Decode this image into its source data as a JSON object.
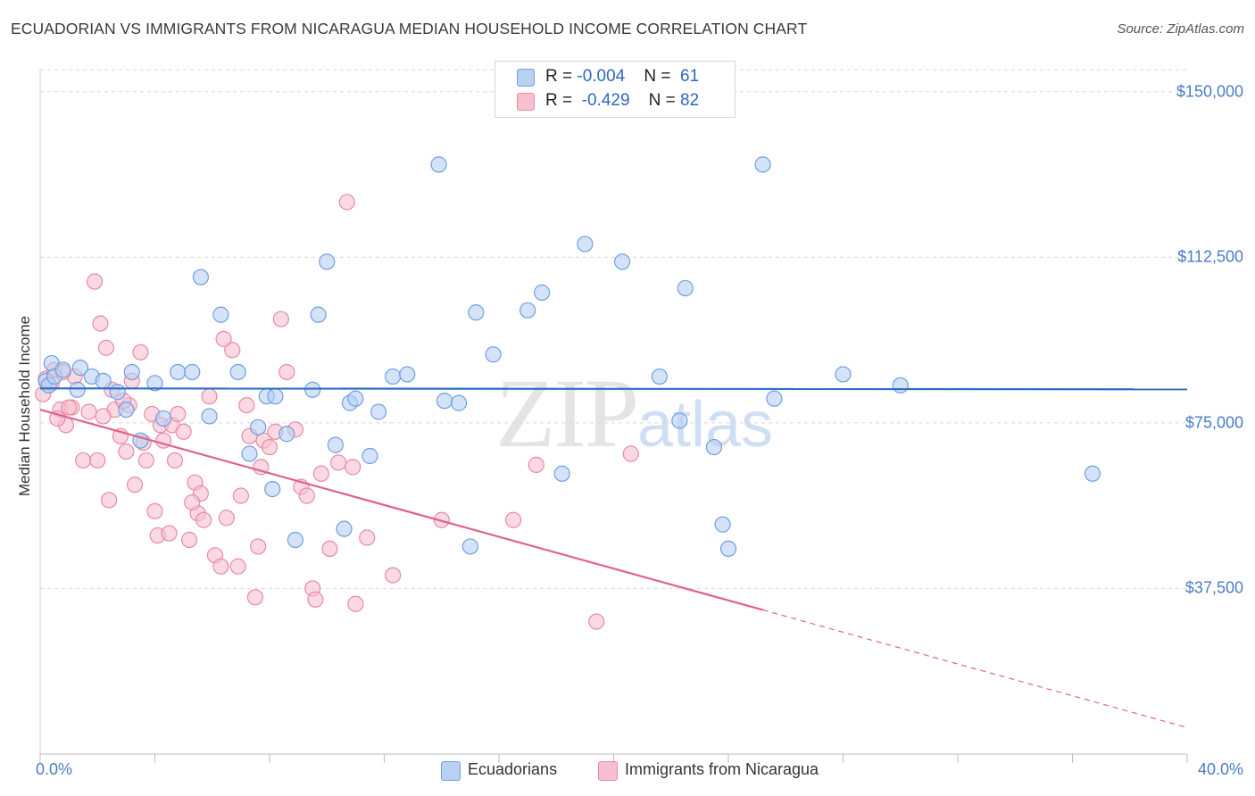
{
  "title": "ECUADORIAN VS IMMIGRANTS FROM NICARAGUA MEDIAN HOUSEHOLD INCOME CORRELATION CHART",
  "source": "Source: ZipAtlas.com",
  "watermark": {
    "zip": "ZIP",
    "atlas": "atlas"
  },
  "colors": {
    "blue_fill": "#b8d1f3",
    "blue_stroke": "#6f9fe0",
    "blue_line": "#2b6cc8",
    "pink_fill": "#f6c0cf",
    "pink_stroke": "#e889a6",
    "pink_line": "#e0628d",
    "tick_text": "#4a7cc4",
    "grid": "#d8d8d8"
  },
  "legend": {
    "rows": [
      {
        "r_label": "R = ",
        "r_value": "-0.004",
        "n_label": "N = ",
        "n_value": "61"
      },
      {
        "r_label": "R = ",
        "r_value": "-0.429",
        "n_label": "N = ",
        "n_value": "82"
      }
    ]
  },
  "bottom_legend": [
    "Ecuadorians",
    "Immigrants from Nicaragua"
  ],
  "chart_data": {
    "type": "scatter",
    "xlabel": "",
    "ylabel": "Median Household Income",
    "xlim": [
      0,
      40
    ],
    "ylim": [
      0,
      155000
    ],
    "x_tick_labels": [
      "0.0%",
      "40.0%"
    ],
    "y_ticks": [
      37500,
      75000,
      112500,
      150000
    ],
    "y_tick_labels": [
      "$37,500",
      "$75,000",
      "$112,500",
      "$150,000"
    ],
    "grid": "horizontal dashed",
    "legend_position": "top-center",
    "series": [
      {
        "name": "Ecuadorians",
        "trend": {
          "x0": 0,
          "y0": 82800,
          "x1": 40,
          "y1": 82600,
          "solid_until": 40
        },
        "points": [
          [
            0.2,
            84500
          ],
          [
            0.3,
            83500
          ],
          [
            0.4,
            88500
          ],
          [
            0.5,
            85500
          ],
          [
            0.8,
            87000
          ],
          [
            1.4,
            87500
          ],
          [
            1.3,
            82500
          ],
          [
            1.8,
            85500
          ],
          [
            2.2,
            84500
          ],
          [
            2.7,
            82000
          ],
          [
            3.0,
            78000
          ],
          [
            3.2,
            86500
          ],
          [
            3.5,
            71000
          ],
          [
            4.0,
            84000
          ],
          [
            4.3,
            76000
          ],
          [
            4.8,
            86500
          ],
          [
            5.3,
            86500
          ],
          [
            5.6,
            108000
          ],
          [
            5.9,
            76500
          ],
          [
            6.3,
            99500
          ],
          [
            6.9,
            86500
          ],
          [
            7.3,
            68000
          ],
          [
            7.6,
            74000
          ],
          [
            7.9,
            81000
          ],
          [
            8.2,
            81000
          ],
          [
            8.1,
            60000
          ],
          [
            8.6,
            72500
          ],
          [
            8.9,
            48500
          ],
          [
            9.5,
            82500
          ],
          [
            9.7,
            99500
          ],
          [
            10.0,
            111500
          ],
          [
            10.3,
            70000
          ],
          [
            10.6,
            51000
          ],
          [
            10.8,
            79500
          ],
          [
            11.0,
            80500
          ],
          [
            11.5,
            67500
          ],
          [
            11.8,
            77500
          ],
          [
            12.3,
            85500
          ],
          [
            12.8,
            86000
          ],
          [
            13.9,
            133500
          ],
          [
            14.1,
            80000
          ],
          [
            14.6,
            79500
          ],
          [
            15.0,
            47000
          ],
          [
            15.2,
            100000
          ],
          [
            15.8,
            90500
          ],
          [
            17.0,
            100500
          ],
          [
            17.5,
            104500
          ],
          [
            18.2,
            63500
          ],
          [
            19.0,
            115500
          ],
          [
            20.3,
            111500
          ],
          [
            21.6,
            85500
          ],
          [
            22.3,
            75500
          ],
          [
            22.5,
            105500
          ],
          [
            23.5,
            69500
          ],
          [
            23.8,
            52000
          ],
          [
            25.2,
            133500
          ],
          [
            25.6,
            80500
          ],
          [
            28.0,
            86000
          ],
          [
            30.0,
            83500
          ],
          [
            36.7,
            63500
          ],
          [
            24.0,
            46500
          ]
        ]
      },
      {
        "name": "Immigrants from Nicaragua",
        "trend": {
          "x0": 0,
          "y0": 78000,
          "x1": 40,
          "y1": 6000,
          "solid_until": 25.2
        },
        "points": [
          [
            0.1,
            81500
          ],
          [
            0.2,
            85000
          ],
          [
            0.4,
            84000
          ],
          [
            0.5,
            87000
          ],
          [
            0.7,
            78000
          ],
          [
            0.9,
            74500
          ],
          [
            1.1,
            78500
          ],
          [
            1.2,
            85500
          ],
          [
            1.5,
            66500
          ],
          [
            1.7,
            77500
          ],
          [
            1.9,
            107000
          ],
          [
            2.0,
            66500
          ],
          [
            2.1,
            97500
          ],
          [
            2.3,
            92000
          ],
          [
            2.4,
            57500
          ],
          [
            2.5,
            82500
          ],
          [
            2.6,
            78000
          ],
          [
            2.8,
            72000
          ],
          [
            3.0,
            68500
          ],
          [
            3.1,
            79000
          ],
          [
            3.3,
            61000
          ],
          [
            3.5,
            91000
          ],
          [
            3.7,
            66500
          ],
          [
            3.9,
            77000
          ],
          [
            4.0,
            55000
          ],
          [
            4.1,
            49500
          ],
          [
            4.2,
            74500
          ],
          [
            4.3,
            71000
          ],
          [
            4.5,
            50000
          ],
          [
            4.6,
            74500
          ],
          [
            4.8,
            77000
          ],
          [
            5.0,
            73000
          ],
          [
            5.2,
            48500
          ],
          [
            5.4,
            61500
          ],
          [
            5.6,
            59000
          ],
          [
            5.5,
            54500
          ],
          [
            5.7,
            53000
          ],
          [
            5.9,
            81000
          ],
          [
            6.1,
            45000
          ],
          [
            6.3,
            42500
          ],
          [
            6.5,
            53500
          ],
          [
            6.7,
            91500
          ],
          [
            6.9,
            42500
          ],
          [
            7.0,
            58500
          ],
          [
            7.2,
            79000
          ],
          [
            7.3,
            72000
          ],
          [
            7.5,
            35500
          ],
          [
            7.6,
            47000
          ],
          [
            7.8,
            71000
          ],
          [
            8.0,
            69500
          ],
          [
            8.2,
            73000
          ],
          [
            8.4,
            98500
          ],
          [
            8.6,
            86500
          ],
          [
            8.9,
            73500
          ],
          [
            9.1,
            60500
          ],
          [
            9.3,
            58500
          ],
          [
            9.5,
            37500
          ],
          [
            9.6,
            35000
          ],
          [
            10.1,
            46500
          ],
          [
            10.4,
            66000
          ],
          [
            10.7,
            125000
          ],
          [
            11.0,
            34000
          ],
          [
            11.4,
            49000
          ],
          [
            12.3,
            40500
          ],
          [
            14.0,
            53000
          ],
          [
            16.5,
            53000
          ],
          [
            17.3,
            65500
          ],
          [
            19.4,
            30000
          ],
          [
            20.6,
            68000
          ],
          [
            2.2,
            76500
          ],
          [
            3.2,
            84500
          ],
          [
            1.0,
            78500
          ],
          [
            0.6,
            76000
          ],
          [
            0.8,
            86500
          ],
          [
            4.7,
            66500
          ],
          [
            6.4,
            94000
          ],
          [
            5.3,
            57000
          ],
          [
            3.6,
            70500
          ],
          [
            7.7,
            65000
          ],
          [
            9.8,
            63500
          ],
          [
            10.9,
            65000
          ],
          [
            2.9,
            80000
          ]
        ]
      }
    ]
  }
}
